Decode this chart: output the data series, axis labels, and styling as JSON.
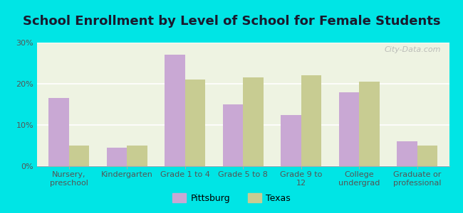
{
  "title": "School Enrollment by Level of School for Female Students",
  "categories": [
    "Nursery,\npreschool",
    "Kindergarten",
    "Grade 1 to 4",
    "Grade 5 to 8",
    "Grade 9 to\n12",
    "College\nundergrad",
    "Graduate or\nprofessional"
  ],
  "pittsburg": [
    16.5,
    4.5,
    27.0,
    15.0,
    12.5,
    18.0,
    6.0
  ],
  "texas": [
    5.0,
    5.0,
    21.0,
    21.5,
    22.0,
    20.5,
    5.0
  ],
  "pittsburg_color": "#c9a8d4",
  "texas_color": "#c8cc92",
  "background_outer": "#00e5e5",
  "background_inner": "#eef3e2",
  "ylim": [
    0,
    30
  ],
  "yticks": [
    0,
    10,
    20,
    30
  ],
  "ytick_labels": [
    "0%",
    "10%",
    "20%",
    "30%"
  ],
  "legend_labels": [
    "Pittsburg",
    "Texas"
  ],
  "watermark": "City-Data.com",
  "bar_width": 0.35,
  "title_fontsize": 13,
  "tick_fontsize": 8,
  "legend_fontsize": 9
}
